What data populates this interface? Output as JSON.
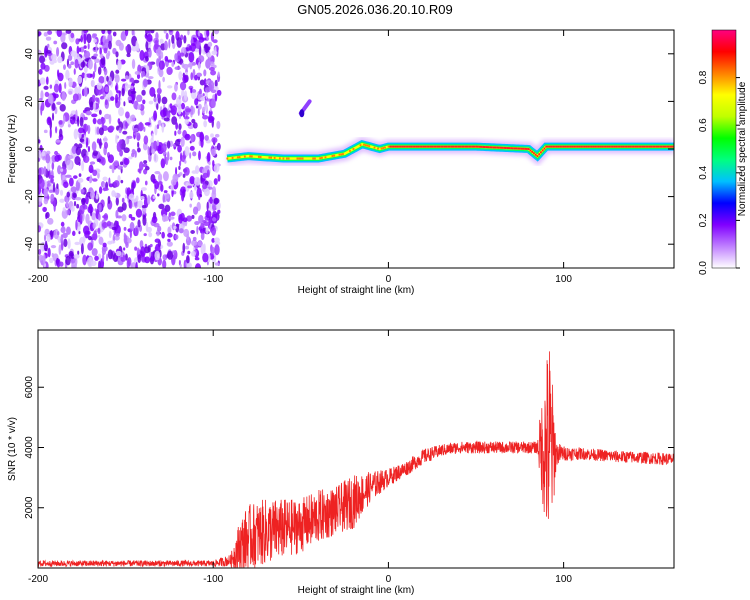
{
  "title": "GN05.2026.036.20.10.R09",
  "chart_data": [
    {
      "type": "heatmap",
      "name": "spectrogram",
      "xlabel": "Height of straight line (km)",
      "ylabel": "Frequency (Hz)",
      "xlim": [
        -200,
        163
      ],
      "ylim": [
        -50,
        50
      ],
      "xticks": [
        -200,
        -100,
        0,
        100
      ],
      "yticks": [
        -40,
        -20,
        0,
        20,
        40
      ],
      "colorbar": {
        "label": "Normalized spectral amplitude",
        "range": [
          0,
          1
        ],
        "ticks": [
          0.0,
          0.2,
          0.4,
          0.6,
          0.8
        ],
        "colors": [
          "#ffffff",
          "#c080ff",
          "#8000ff",
          "#0000ff",
          "#00c0ff",
          "#00ff80",
          "#00ff00",
          "#c0ff00",
          "#ffff00",
          "#ff8000",
          "#ff0000",
          "#ff0080"
        ]
      },
      "noise_region_x": [
        -200,
        -100
      ],
      "signal_track": {
        "x": [
          -92,
          -80,
          -60,
          -40,
          -25,
          -15,
          -5,
          0,
          20,
          50,
          80,
          85,
          90,
          100,
          163
        ],
        "freq": [
          -4,
          -3,
          -4,
          -4,
          -2,
          2,
          0,
          1,
          1,
          1,
          0,
          -3,
          1,
          1,
          1
        ]
      },
      "artifact": {
        "x": [
          -50,
          -45
        ],
        "freq": [
          15,
          20
        ]
      }
    },
    {
      "type": "line",
      "name": "snr",
      "xlabel": "Height of straight line (km)",
      "ylabel": "SNR (10 * v/v)",
      "xlim": [
        -200,
        163
      ],
      "ylim": [
        0,
        7900
      ],
      "xticks": [
        -200,
        -100,
        0,
        100
      ],
      "yticks": [
        2000,
        4000,
        6000
      ],
      "color": "#ee2222",
      "envelope": {
        "x": [
          -200,
          -100,
          -90,
          -85,
          -80,
          -70,
          -60,
          -50,
          -40,
          -30,
          -20,
          -10,
          0,
          10,
          20,
          30,
          40,
          60,
          80,
          85,
          90,
          92,
          94,
          96,
          100,
          110,
          130,
          150,
          163
        ],
        "y": [
          150,
          150,
          250,
          700,
          1000,
          1200,
          1300,
          1400,
          1700,
          1900,
          2200,
          2700,
          3000,
          3300,
          3700,
          3900,
          4000,
          4000,
          4000,
          4000,
          4000,
          4000,
          3900,
          3800,
          3800,
          3800,
          3700,
          3650,
          3600
        ],
        "amp": [
          100,
          100,
          200,
          900,
          1100,
          1100,
          1000,
          900,
          900,
          800,
          900,
          500,
          300,
          250,
          250,
          200,
          200,
          200,
          200,
          200,
          3000,
          3800,
          2000,
          400,
          250,
          200,
          200,
          200,
          200
        ]
      }
    }
  ]
}
